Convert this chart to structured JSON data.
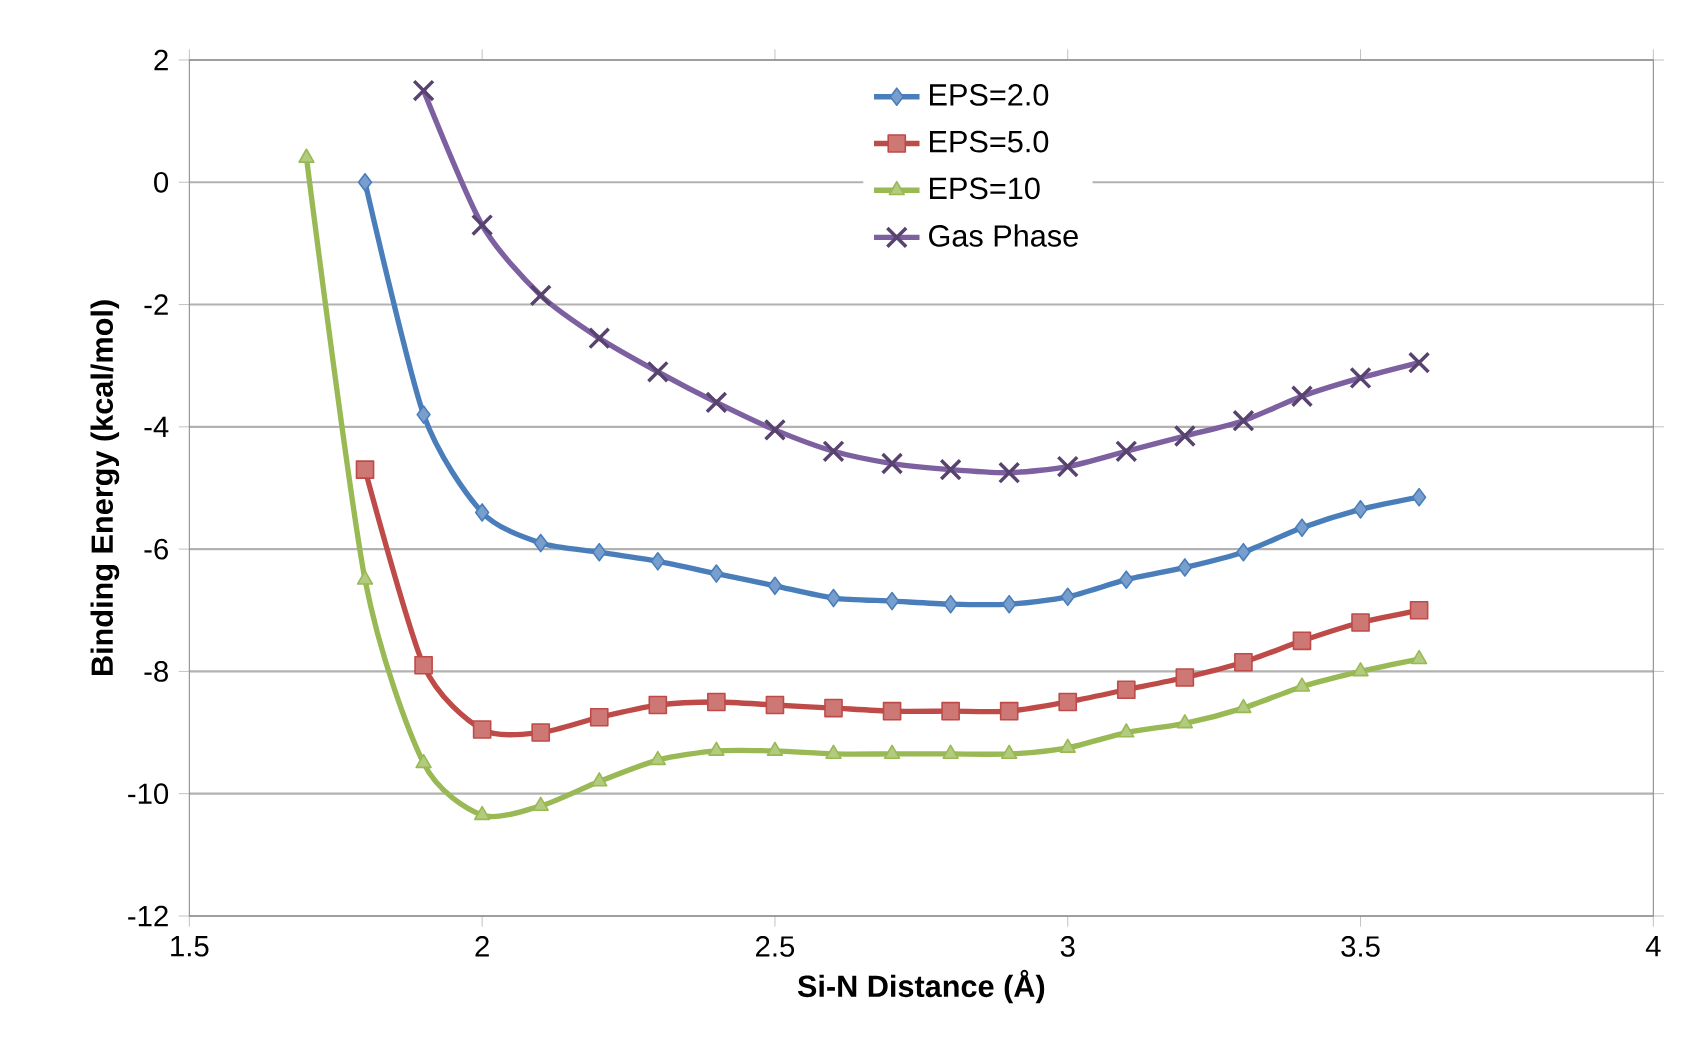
{
  "chart_data": {
    "type": "line",
    "xlabel": "Si-N Distance (Å)",
    "ylabel": "Binding Energy (kcal/mol)",
    "xlim": [
      1.5,
      4
    ],
    "xticks": [
      1.5,
      2,
      2.5,
      3,
      3.5,
      4
    ],
    "ylim": [
      -12,
      2
    ],
    "yticks": [
      -12,
      -10,
      -8,
      -6,
      -4,
      -2,
      0,
      2
    ],
    "grid": "y",
    "legend": "top",
    "series": [
      {
        "name": "EPS=2.0",
        "color": "#4a7ebb",
        "marker": "diamond",
        "x": [
          1.8,
          1.9,
          2.0,
          2.1,
          2.2,
          2.3,
          2.4,
          2.5,
          2.6,
          2.7,
          2.8,
          2.9,
          3.0,
          3.1,
          3.2,
          3.3,
          3.4,
          3.5,
          3.6
        ],
        "values": [
          0,
          -3.8,
          -5.4,
          -5.9,
          -6.05,
          -6.2,
          -6.4,
          -6.6,
          -6.8,
          -6.85,
          -6.9,
          -6.9,
          -6.78,
          -6.5,
          -6.3,
          -6.05,
          -5.65,
          -5.35,
          -5.15
        ]
      },
      {
        "name": "EPS=5.0",
        "color": "#be4b48",
        "marker": "square",
        "x": [
          1.8,
          1.9,
          2.0,
          2.1,
          2.2,
          2.3,
          2.4,
          2.5,
          2.6,
          2.7,
          2.8,
          2.9,
          3.0,
          3.1,
          3.2,
          3.3,
          3.4,
          3.5,
          3.6
        ],
        "values": [
          -4.7,
          -7.9,
          -8.95,
          -9.0,
          -8.75,
          -8.55,
          -8.5,
          -8.55,
          -8.6,
          -8.65,
          -8.65,
          -8.65,
          -8.5,
          -8.3,
          -8.1,
          -7.85,
          -7.5,
          -7.2,
          -7.0
        ]
      },
      {
        "name": "EPS=10",
        "color": "#98b954",
        "marker": "triangle",
        "x": [
          1.7,
          1.8,
          1.9,
          2.0,
          2.1,
          2.2,
          2.3,
          2.4,
          2.5,
          2.6,
          2.7,
          2.8,
          2.9,
          3.0,
          3.1,
          3.2,
          3.3,
          3.4,
          3.5,
          3.6
        ],
        "values": [
          0.4,
          -6.5,
          -9.5,
          -10.35,
          -10.2,
          -9.8,
          -9.45,
          -9.3,
          -9.3,
          -9.35,
          -9.35,
          -9.35,
          -9.35,
          -9.25,
          -9.0,
          -8.85,
          -8.6,
          -8.25,
          -8.0,
          -7.8
        ]
      },
      {
        "name": "Gas Phase",
        "color": "#7d60a0",
        "marker": "cross",
        "x": [
          1.9,
          2.0,
          2.1,
          2.2,
          2.3,
          2.4,
          2.5,
          2.6,
          2.7,
          2.8,
          2.9,
          3.0,
          3.1,
          3.2,
          3.3,
          3.4,
          3.5,
          3.6
        ],
        "values": [
          1.5,
          -0.7,
          -1.85,
          -2.55,
          -3.1,
          -3.6,
          -4.05,
          -4.4,
          -4.6,
          -4.7,
          -4.75,
          -4.65,
          -4.4,
          -4.15,
          -3.9,
          -3.5,
          -3.2,
          -2.95
        ]
      }
    ]
  }
}
